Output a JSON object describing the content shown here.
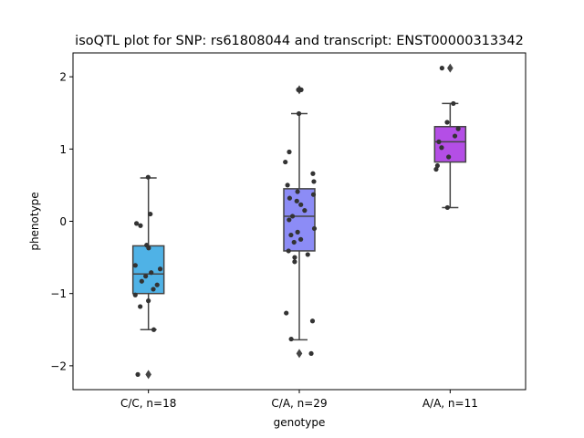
{
  "chart_data": {
    "type": "box",
    "title": "isoQTL plot for SNP: rs61808044 and transcript: ENST00000313342",
    "xlabel": "genotype",
    "ylabel": "phenotype",
    "ylim": [
      -2.33,
      2.33
    ],
    "yticks": [
      -2,
      -1,
      0,
      1,
      2
    ],
    "ytick_labels": [
      "−2",
      "−1",
      "0",
      "1",
      "2"
    ],
    "grid": false,
    "categories": [
      "C/C, n=18",
      "C/A, n=29",
      "A/A, n=11"
    ],
    "colors": [
      "#4fb2e6",
      "#8c8cf6",
      "#b44ee6"
    ],
    "boxes": [
      {
        "q1": -1.0,
        "median": -0.73,
        "q3": -0.34,
        "whisker_low": -1.5,
        "whisker_high": 0.6,
        "outliers": [
          -2.12
        ]
      },
      {
        "q1": -0.41,
        "median": 0.07,
        "q3": 0.45,
        "whisker_low": -1.64,
        "whisker_high": 1.49,
        "outliers": [
          1.82,
          -1.83
        ]
      },
      {
        "q1": 0.82,
        "median": 1.1,
        "q3": 1.31,
        "whisker_low": 0.19,
        "whisker_high": 1.63,
        "outliers": [
          2.12
        ]
      }
    ],
    "points": [
      [
        0.61,
        0.1,
        -0.03,
        -0.06,
        -0.33,
        -0.37,
        -0.61,
        -0.66,
        -0.71,
        -0.76,
        -0.83,
        -0.88,
        -0.94,
        -1.02,
        -1.1,
        -1.18,
        -1.5,
        -2.12
      ],
      [
        1.82,
        1.49,
        0.96,
        0.82,
        0.66,
        0.55,
        0.5,
        0.41,
        0.37,
        0.32,
        0.28,
        0.23,
        0.15,
        0.07,
        0.02,
        -0.1,
        -0.15,
        -0.19,
        -0.25,
        -0.29,
        -0.41,
        -0.46,
        -0.5,
        -0.56,
        -1.27,
        -1.38,
        -1.63,
        -1.83,
        1.82
      ],
      [
        2.12,
        1.63,
        1.37,
        1.28,
        1.18,
        1.1,
        1.02,
        0.89,
        0.77,
        0.72,
        0.19
      ]
    ]
  }
}
